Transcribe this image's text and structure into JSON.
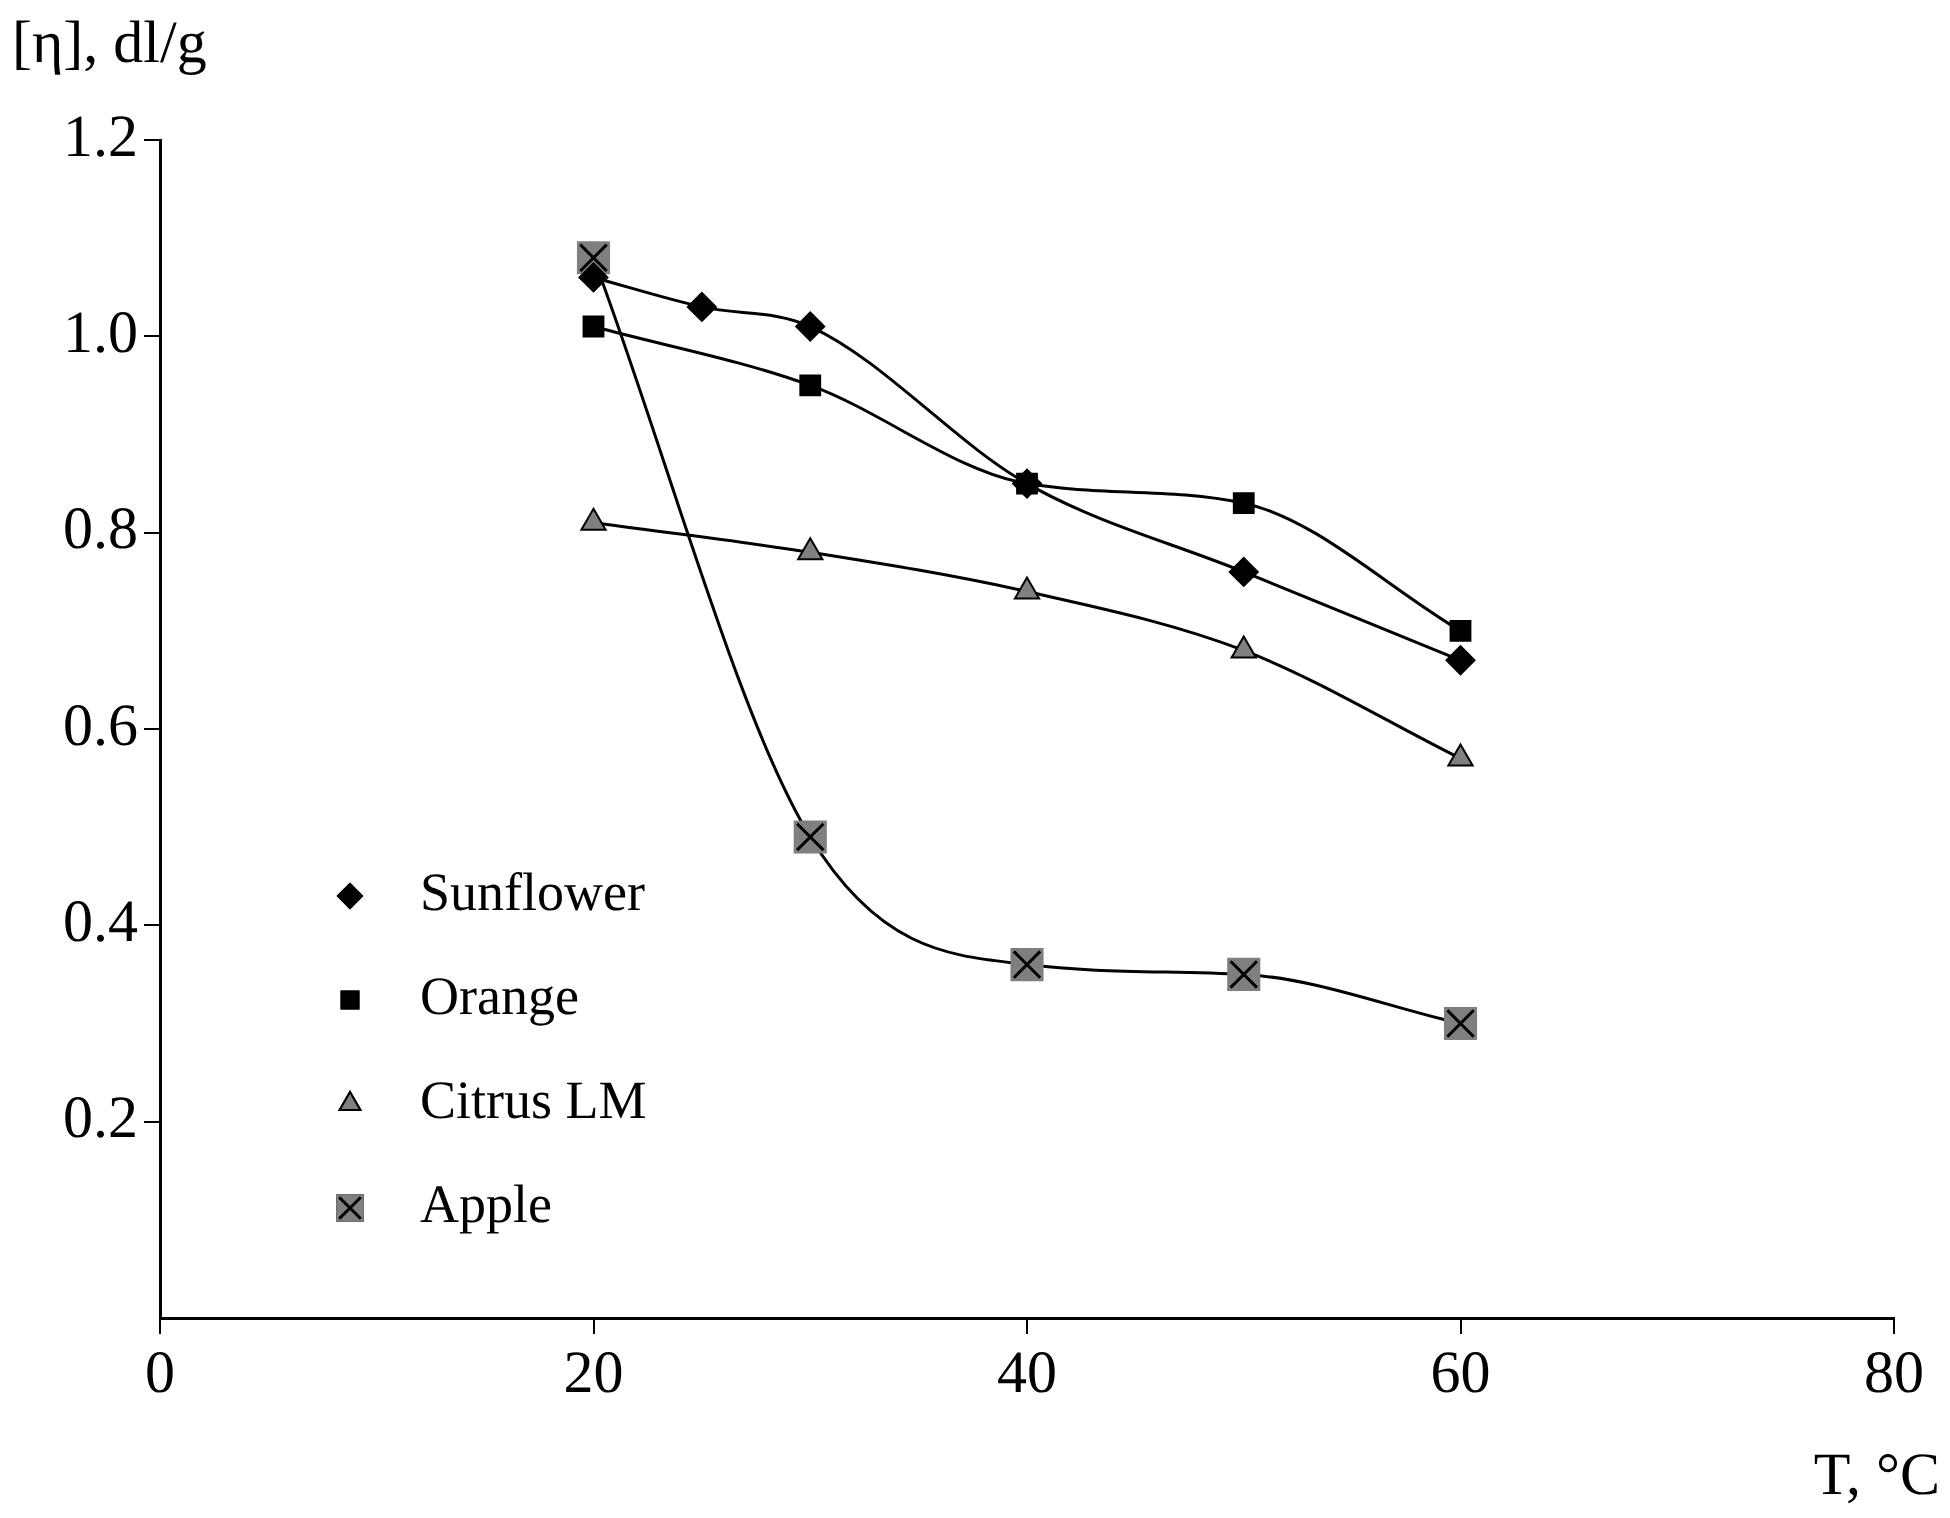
{
  "chart_data": {
    "type": "line",
    "xlabel": "T, °C",
    "ylabel": "[η], dl/g",
    "xlim": [
      0,
      80
    ],
    "xticks": [
      0,
      20,
      40,
      60,
      80
    ],
    "ylim": [
      0,
      1.2
    ],
    "yticks": [
      0.2,
      0.4,
      0.6,
      0.8,
      {
        "value": 1,
        "label": "1.0"
      },
      1.2
    ],
    "grid": false,
    "legend": "bottom left",
    "series": [
      {
        "name": "Sunflower",
        "color": "#000000",
        "marker": "diamond",
        "x": [
          20,
          25,
          30,
          40,
          50,
          60
        ],
        "values": [
          1.06,
          1.03,
          1.01,
          0.85,
          0.76,
          0.67
        ]
      },
      {
        "name": "Orange",
        "color": "#000000",
        "marker": "square",
        "x": [
          20,
          30,
          40,
          50,
          60
        ],
        "values": [
          1.01,
          0.95,
          0.85,
          0.83,
          0.7
        ]
      },
      {
        "name": "Citrus LM",
        "color": "#808080",
        "marker": "triangle",
        "x": [
          20,
          30,
          40,
          50,
          60
        ],
        "values": [
          0.81,
          0.78,
          0.74,
          0.68,
          0.57
        ]
      },
      {
        "name": "Apple",
        "color": "#7f7f7f",
        "marker": "square",
        "x": [
          20,
          30,
          40,
          50,
          60
        ],
        "values": [
          1.08,
          0.49,
          0.36,
          0.35,
          0.3
        ]
      }
    ]
  }
}
